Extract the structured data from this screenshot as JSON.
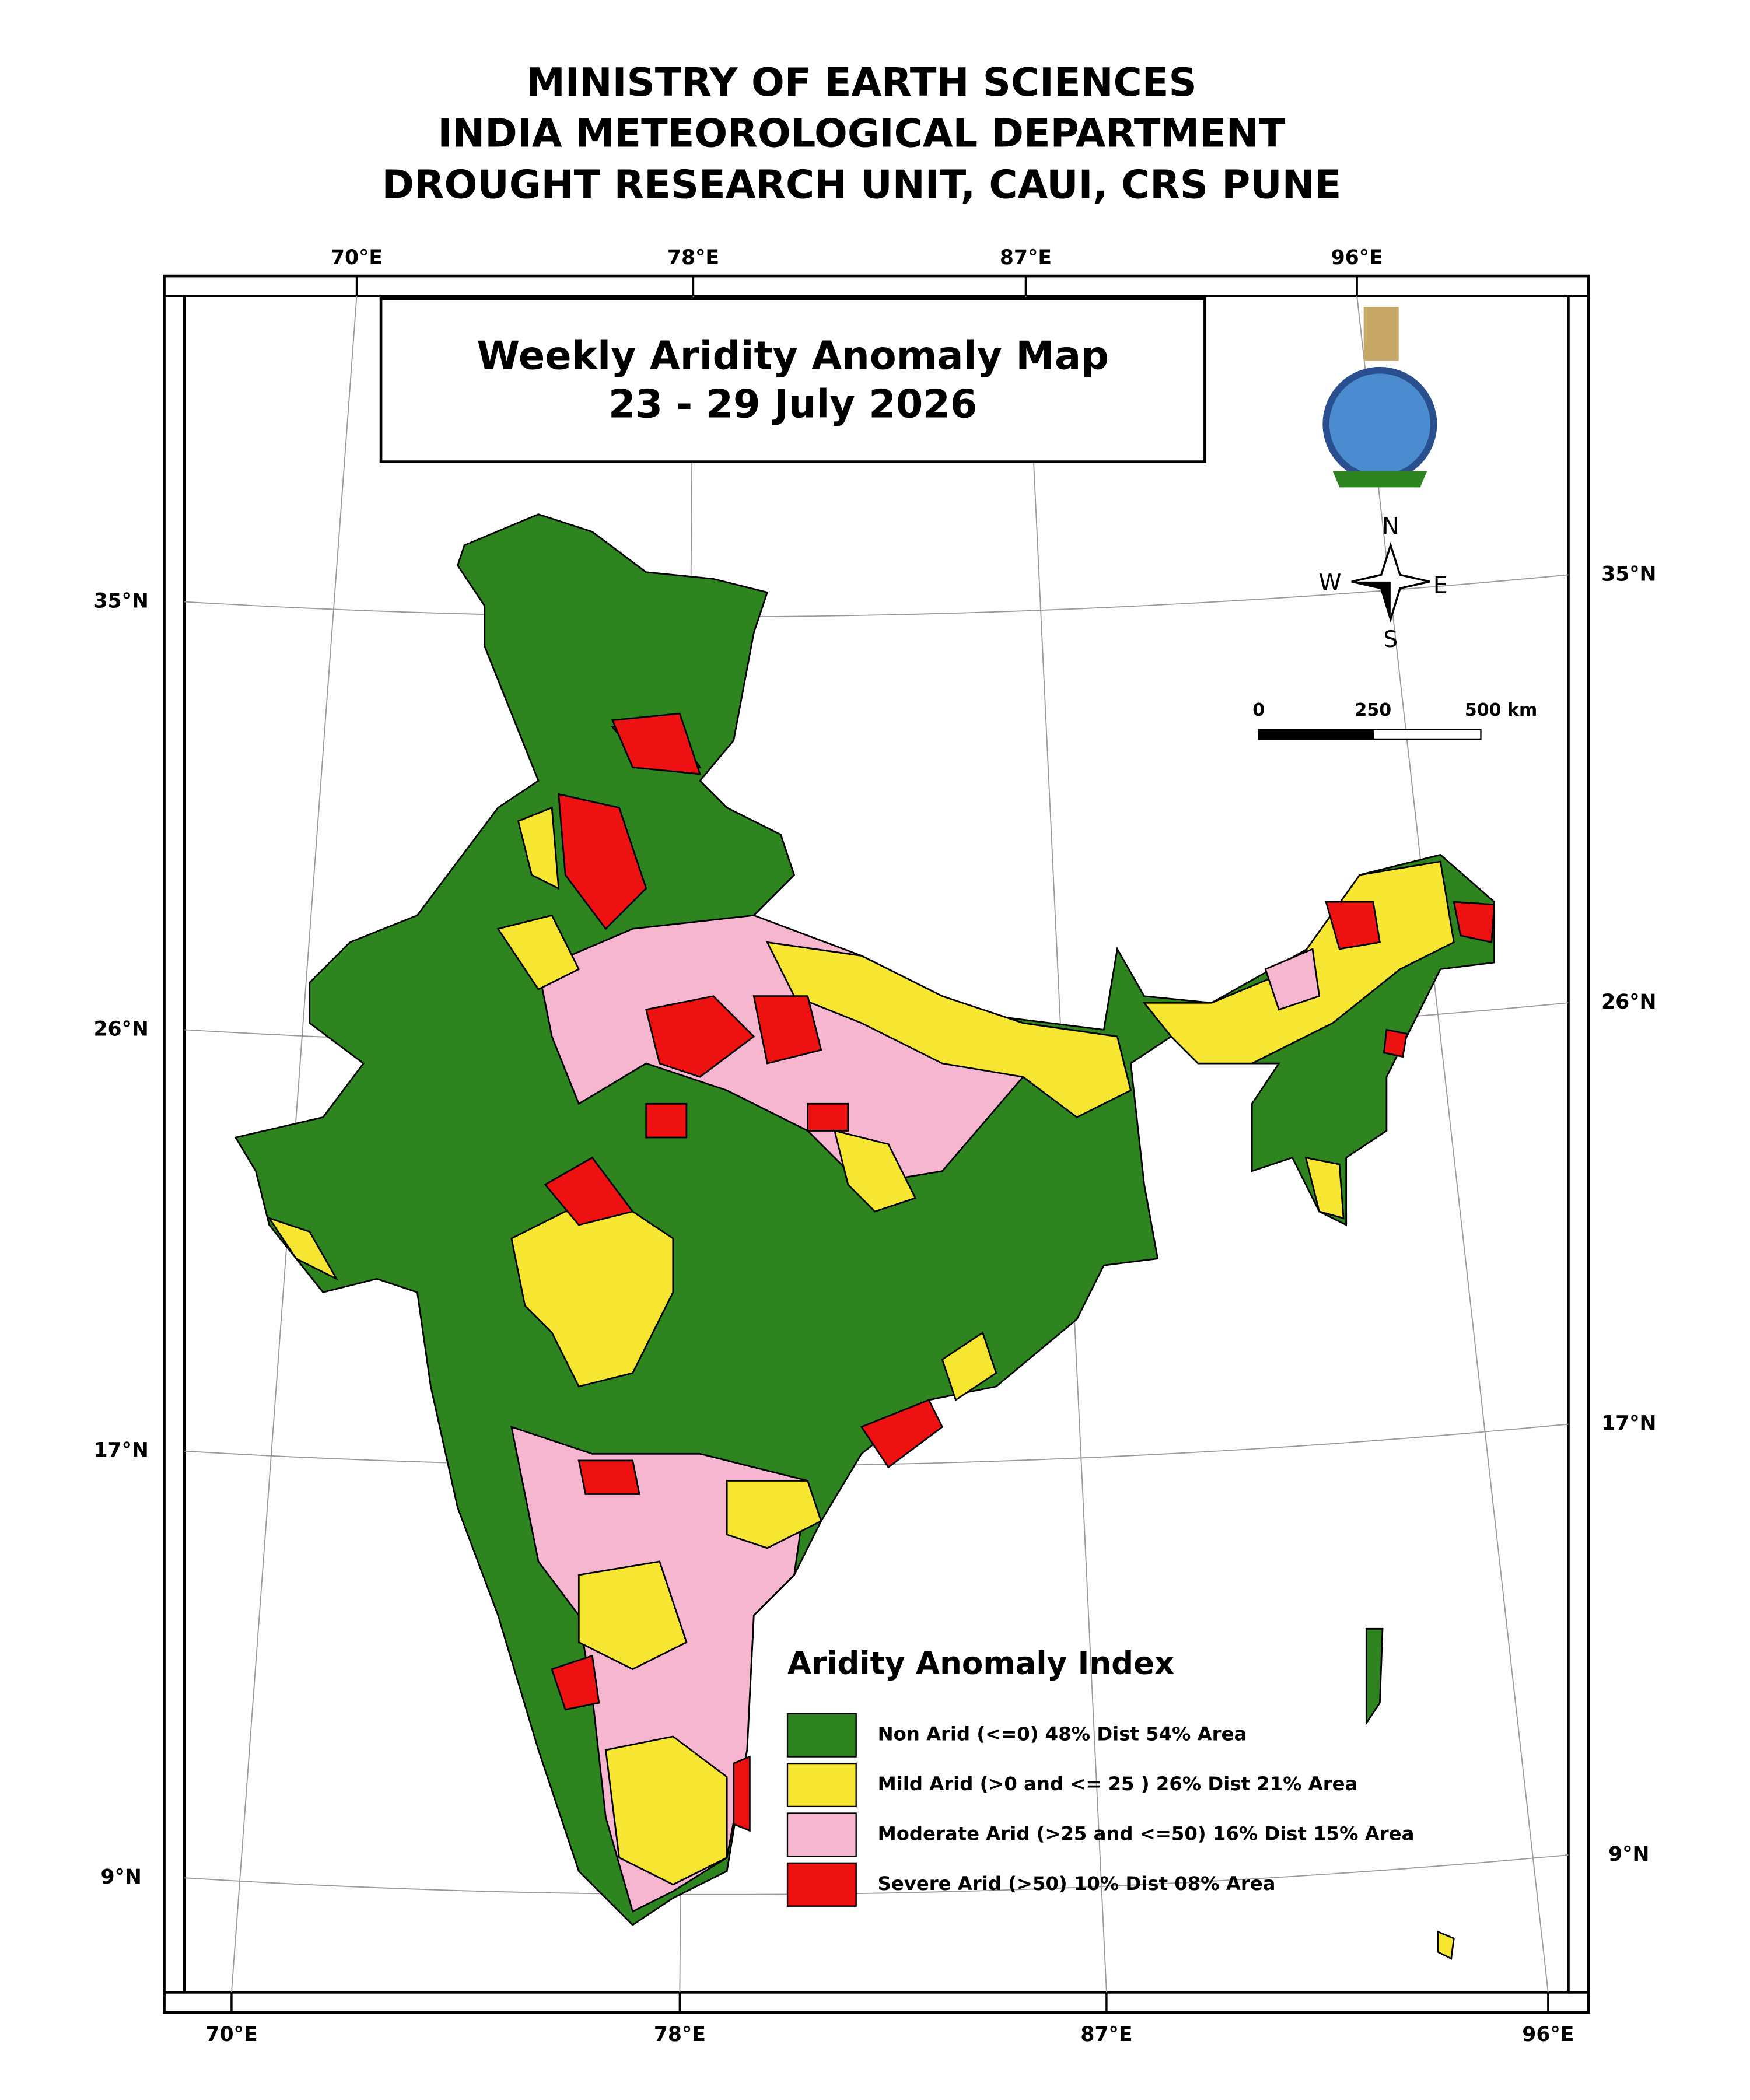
{
  "header": {
    "lines": [
      "MINISTRY OF EARTH SCIENCES",
      "INDIA METEOROLOGICAL DEPARTMENT",
      "DROUGHT RESEARCH UNIT, CAUI, CRS PUNE"
    ]
  },
  "map": {
    "title": "Weekly Aridity Anomaly Map",
    "date": "23 - 29 July 2026",
    "top_labels": [
      "70°E",
      "78°E",
      "87°E",
      "96°E"
    ],
    "bottom_labels": [
      "70°E",
      "78°E",
      "87°E",
      "96°E"
    ],
    "left_labels": [
      "35°N",
      "26°N",
      "17°N",
      "9°N"
    ],
    "right_labels": [
      "35°N",
      "26°N",
      "17°N",
      "9°N"
    ],
    "compass": [
      "N",
      "W",
      "E",
      "S"
    ],
    "scale": [
      "0",
      "250",
      "500 km"
    ]
  },
  "legend": {
    "title": "Aridity Anomaly Index",
    "items": [
      {
        "label": "Non Arid (<=0) 48% Dist 54% Area",
        "color": "#2e8520"
      },
      {
        "label": "Mild Arid (>0 and <= 25 ) 26% Dist  21% Area",
        "color": "#f7e733"
      },
      {
        "label": "Moderate Arid (>25 and <=50) 16% Dist 15% Area",
        "color": "#f7b6cf"
      },
      {
        "label": "Severe Arid (>50) 10% Dist  08% Area",
        "color": "#ee1111"
      }
    ]
  }
}
